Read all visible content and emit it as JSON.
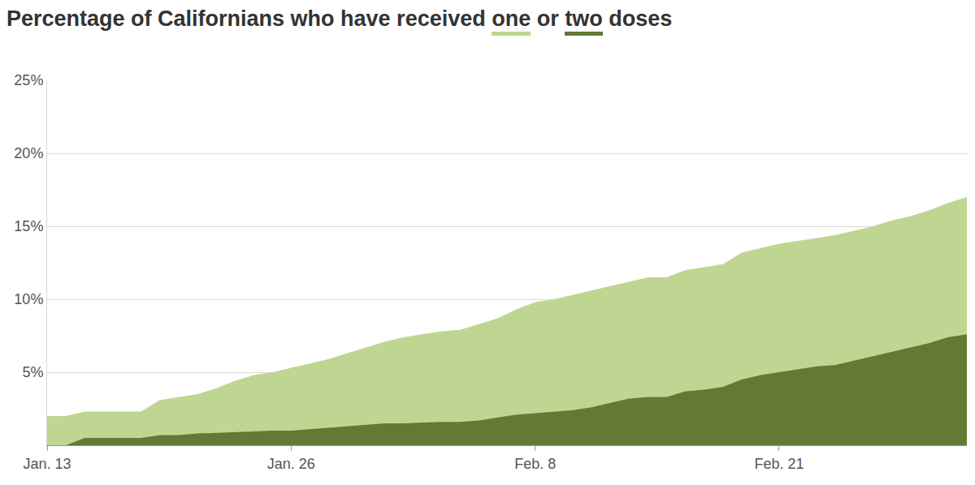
{
  "chart_data": {
    "type": "area",
    "title": "Percentage of Californians who have received one or two doses",
    "categories": [
      "Jan. 13",
      null,
      null,
      null,
      null,
      null,
      null,
      null,
      null,
      null,
      null,
      null,
      null,
      "Jan. 26",
      null,
      null,
      null,
      null,
      null,
      null,
      null,
      null,
      null,
      null,
      null,
      null,
      "Feb. 8",
      null,
      null,
      null,
      null,
      null,
      null,
      null,
      null,
      null,
      null,
      null,
      null,
      "Feb. 21",
      null,
      null,
      null,
      null,
      null,
      null,
      null,
      null,
      null,
      null
    ],
    "series": [
      {
        "name": "one",
        "color": "#bfd692",
        "values": [
          2.0,
          2.0,
          2.3,
          2.3,
          2.3,
          2.3,
          3.1,
          3.3,
          3.5,
          3.9,
          4.4,
          4.8,
          5.0,
          5.3,
          5.6,
          5.9,
          6.3,
          6.7,
          7.1,
          7.4,
          7.6,
          7.8,
          7.9,
          8.3,
          8.7,
          9.3,
          9.8,
          10.0,
          10.3,
          10.6,
          10.9,
          11.2,
          11.5,
          11.5,
          12.0,
          12.2,
          12.4,
          13.2,
          13.5,
          13.8,
          14.0,
          14.2,
          14.4,
          14.7,
          15.0,
          15.4,
          15.7,
          16.1,
          16.6,
          17.0
        ]
      },
      {
        "name": "two",
        "color": "#627a33",
        "values": [
          0,
          0,
          0.5,
          0.5,
          0.5,
          0.5,
          0.7,
          0.7,
          0.8,
          0.85,
          0.9,
          0.95,
          1.0,
          1.0,
          1.1,
          1.2,
          1.3,
          1.4,
          1.5,
          1.5,
          1.55,
          1.6,
          1.6,
          1.7,
          1.9,
          2.1,
          2.2,
          2.3,
          2.4,
          2.6,
          2.9,
          3.2,
          3.3,
          3.3,
          3.7,
          3.8,
          4.0,
          4.5,
          4.8,
          5.0,
          5.2,
          5.4,
          5.5,
          5.8,
          6.1,
          6.4,
          6.7,
          7.0,
          7.4,
          7.6
        ]
      }
    ],
    "ylim": [
      0,
      25
    ],
    "yticks": [
      {
        "value": 5,
        "label": "5%"
      },
      {
        "value": 10,
        "label": "10%"
      },
      {
        "value": 15,
        "label": "15%"
      },
      {
        "value": 20,
        "label": "20%"
      },
      {
        "value": 25,
        "label": "25%"
      }
    ],
    "grid": true,
    "stacked": false
  }
}
